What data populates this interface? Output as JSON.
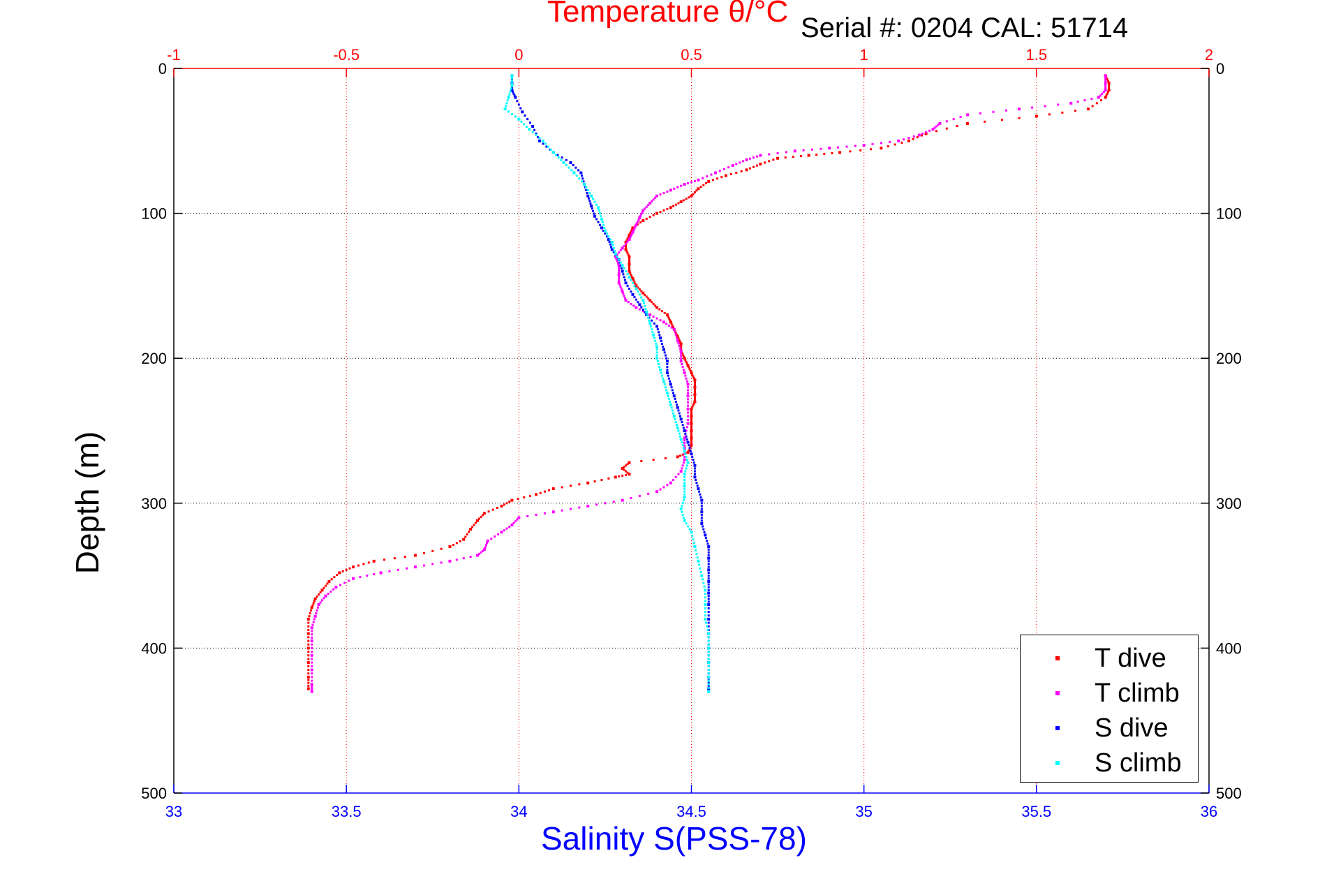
{
  "chart_data": {
    "type": "scatter",
    "title": "Temperature θ/°C",
    "subtitle": "Serial #: 0204   CAL: 51714",
    "xlabel_bottom": "Salinity S(PSS-78)",
    "xlabel_top": "Temperature θ/°C",
    "ylabel": "Depth (m)",
    "xlim_bottom": [
      33,
      36
    ],
    "xlim_top": [
      -1,
      2
    ],
    "ylim": [
      0,
      500
    ],
    "y_reversed": true,
    "grid": true,
    "legend_position": "bottom-right",
    "x_ticks_bottom": [
      "33",
      "33.5",
      "34",
      "34.5",
      "35",
      "35.5",
      "36"
    ],
    "x_ticks_top": [
      "-1",
      "-0.5",
      "0",
      "0.5",
      "1",
      "1.5",
      "2"
    ],
    "y_ticks": [
      "0",
      "100",
      "200",
      "300",
      "400",
      "500"
    ],
    "series": [
      {
        "name": "T dive",
        "axis": "top",
        "color": "#ff0000",
        "points": [
          [
            1.7,
            5
          ],
          [
            1.71,
            10
          ],
          [
            1.71,
            15
          ],
          [
            1.7,
            20
          ],
          [
            1.65,
            28
          ],
          [
            1.5,
            33
          ],
          [
            1.3,
            38
          ],
          [
            1.18,
            45
          ],
          [
            1.13,
            50
          ],
          [
            1.05,
            55
          ],
          [
            0.93,
            58
          ],
          [
            0.84,
            60
          ],
          [
            0.75,
            62
          ],
          [
            0.7,
            66
          ],
          [
            0.66,
            70
          ],
          [
            0.6,
            74
          ],
          [
            0.55,
            78
          ],
          [
            0.52,
            83
          ],
          [
            0.5,
            88
          ],
          [
            0.47,
            92
          ],
          [
            0.44,
            96
          ],
          [
            0.4,
            100
          ],
          [
            0.36,
            105
          ],
          [
            0.33,
            110
          ],
          [
            0.32,
            115
          ],
          [
            0.31,
            120
          ],
          [
            0.31,
            125
          ],
          [
            0.32,
            130
          ],
          [
            0.32,
            135
          ],
          [
            0.32,
            140
          ],
          [
            0.33,
            145
          ],
          [
            0.34,
            150
          ],
          [
            0.36,
            155
          ],
          [
            0.38,
            160
          ],
          [
            0.4,
            165
          ],
          [
            0.43,
            170
          ],
          [
            0.44,
            175
          ],
          [
            0.45,
            180
          ],
          [
            0.46,
            185
          ],
          [
            0.47,
            190
          ],
          [
            0.47,
            195
          ],
          [
            0.48,
            200
          ],
          [
            0.49,
            205
          ],
          [
            0.5,
            210
          ],
          [
            0.51,
            215
          ],
          [
            0.51,
            220
          ],
          [
            0.51,
            225
          ],
          [
            0.51,
            230
          ],
          [
            0.5,
            235
          ],
          [
            0.5,
            240
          ],
          [
            0.5,
            245
          ],
          [
            0.5,
            250
          ],
          [
            0.5,
            255
          ],
          [
            0.5,
            260
          ],
          [
            0.49,
            265
          ],
          [
            0.46,
            268
          ],
          [
            0.32,
            272
          ],
          [
            0.3,
            276
          ],
          [
            0.32,
            280
          ],
          [
            0.28,
            282
          ],
          [
            0.2,
            286
          ],
          [
            0.1,
            290
          ],
          [
            0.05,
            294
          ],
          [
            -0.02,
            298
          ],
          [
            -0.05,
            302
          ],
          [
            -0.1,
            307
          ],
          [
            -0.12,
            312
          ],
          [
            -0.14,
            318
          ],
          [
            -0.16,
            325
          ],
          [
            -0.2,
            330
          ],
          [
            -0.3,
            336
          ],
          [
            -0.42,
            340
          ],
          [
            -0.48,
            344
          ],
          [
            -0.52,
            348
          ],
          [
            -0.55,
            354
          ],
          [
            -0.57,
            360
          ],
          [
            -0.59,
            366
          ],
          [
            -0.6,
            372
          ],
          [
            -0.61,
            380
          ],
          [
            -0.61,
            390
          ],
          [
            -0.61,
            400
          ],
          [
            -0.61,
            410
          ],
          [
            -0.61,
            420
          ],
          [
            -0.61,
            428
          ]
        ]
      },
      {
        "name": "T climb",
        "axis": "top",
        "color": "#ff00ff",
        "points": [
          [
            1.7,
            5
          ],
          [
            1.7,
            10
          ],
          [
            1.7,
            15
          ],
          [
            1.68,
            20
          ],
          [
            1.6,
            24
          ],
          [
            1.45,
            28
          ],
          [
            1.3,
            32
          ],
          [
            1.22,
            38
          ],
          [
            1.2,
            42
          ],
          [
            1.16,
            46
          ],
          [
            1.1,
            50
          ],
          [
            1.0,
            53
          ],
          [
            0.9,
            55
          ],
          [
            0.8,
            57
          ],
          [
            0.7,
            60
          ],
          [
            0.66,
            63
          ],
          [
            0.62,
            67
          ],
          [
            0.57,
            72
          ],
          [
            0.52,
            77
          ],
          [
            0.48,
            80
          ],
          [
            0.44,
            84
          ],
          [
            0.4,
            88
          ],
          [
            0.38,
            93
          ],
          [
            0.36,
            98
          ],
          [
            0.35,
            103
          ],
          [
            0.34,
            108
          ],
          [
            0.33,
            113
          ],
          [
            0.32,
            118
          ],
          [
            0.3,
            124
          ],
          [
            0.28,
            130
          ],
          [
            0.29,
            136
          ],
          [
            0.29,
            142
          ],
          [
            0.29,
            148
          ],
          [
            0.3,
            154
          ],
          [
            0.31,
            160
          ],
          [
            0.34,
            165
          ],
          [
            0.38,
            170
          ],
          [
            0.42,
            175
          ],
          [
            0.45,
            180
          ],
          [
            0.46,
            188
          ],
          [
            0.47,
            195
          ],
          [
            0.47,
            202
          ],
          [
            0.48,
            210
          ],
          [
            0.49,
            218
          ],
          [
            0.49,
            226
          ],
          [
            0.49,
            235
          ],
          [
            0.49,
            245
          ],
          [
            0.48,
            255
          ],
          [
            0.48,
            262
          ],
          [
            0.48,
            270
          ],
          [
            0.47,
            278
          ],
          [
            0.44,
            286
          ],
          [
            0.4,
            292
          ],
          [
            0.3,
            298
          ],
          [
            0.2,
            302
          ],
          [
            0.1,
            306
          ],
          [
            0.0,
            310
          ],
          [
            -0.02,
            315
          ],
          [
            -0.05,
            320
          ],
          [
            -0.09,
            326
          ],
          [
            -0.1,
            332
          ],
          [
            -0.12,
            336
          ],
          [
            -0.2,
            340
          ],
          [
            -0.3,
            344
          ],
          [
            -0.4,
            348
          ],
          [
            -0.48,
            352
          ],
          [
            -0.53,
            358
          ],
          [
            -0.56,
            364
          ],
          [
            -0.58,
            370
          ],
          [
            -0.59,
            378
          ],
          [
            -0.6,
            386
          ],
          [
            -0.6,
            395
          ],
          [
            -0.6,
            405
          ],
          [
            -0.6,
            415
          ],
          [
            -0.6,
            425
          ],
          [
            -0.6,
            430
          ]
        ]
      },
      {
        "name": "S dive",
        "axis": "bottom",
        "color": "#0000ff",
        "points": [
          [
            33.98,
            5
          ],
          [
            33.98,
            10
          ],
          [
            33.98,
            15
          ],
          [
            33.99,
            20
          ],
          [
            34.01,
            30
          ],
          [
            34.04,
            40
          ],
          [
            34.06,
            50
          ],
          [
            34.1,
            58
          ],
          [
            34.15,
            65
          ],
          [
            34.18,
            72
          ],
          [
            34.19,
            80
          ],
          [
            34.2,
            88
          ],
          [
            34.21,
            95
          ],
          [
            34.22,
            102
          ],
          [
            34.24,
            110
          ],
          [
            34.26,
            118
          ],
          [
            34.27,
            125
          ],
          [
            34.29,
            132
          ],
          [
            34.3,
            140
          ],
          [
            34.31,
            148
          ],
          [
            34.33,
            156
          ],
          [
            34.35,
            163
          ],
          [
            34.37,
            170
          ],
          [
            34.4,
            178
          ],
          [
            34.41,
            186
          ],
          [
            34.42,
            194
          ],
          [
            34.43,
            202
          ],
          [
            34.43,
            210
          ],
          [
            34.44,
            218
          ],
          [
            34.45,
            226
          ],
          [
            34.46,
            234
          ],
          [
            34.47,
            242
          ],
          [
            34.48,
            250
          ],
          [
            34.49,
            258
          ],
          [
            34.5,
            266
          ],
          [
            34.51,
            274
          ],
          [
            34.51,
            282
          ],
          [
            34.52,
            290
          ],
          [
            34.53,
            298
          ],
          [
            34.53,
            306
          ],
          [
            34.53,
            314
          ],
          [
            34.54,
            322
          ],
          [
            34.55,
            330
          ],
          [
            34.55,
            338
          ],
          [
            34.55,
            346
          ],
          [
            34.55,
            354
          ],
          [
            34.55,
            362
          ],
          [
            34.55,
            370
          ],
          [
            34.55,
            380
          ],
          [
            34.55,
            390
          ],
          [
            34.55,
            400
          ],
          [
            34.55,
            410
          ],
          [
            34.55,
            420
          ],
          [
            34.55,
            428
          ]
        ]
      },
      {
        "name": "S climb",
        "axis": "bottom",
        "color": "#00ffff",
        "points": [
          [
            33.98,
            5
          ],
          [
            33.98,
            12
          ],
          [
            33.97,
            20
          ],
          [
            33.96,
            28
          ],
          [
            34.0,
            35
          ],
          [
            34.03,
            42
          ],
          [
            34.07,
            50
          ],
          [
            34.1,
            58
          ],
          [
            34.13,
            65
          ],
          [
            34.16,
            72
          ],
          [
            34.19,
            80
          ],
          [
            34.21,
            88
          ],
          [
            34.23,
            96
          ],
          [
            34.24,
            104
          ],
          [
            34.25,
            112
          ],
          [
            34.27,
            120
          ],
          [
            34.28,
            128
          ],
          [
            34.3,
            136
          ],
          [
            34.32,
            144
          ],
          [
            34.34,
            152
          ],
          [
            34.36,
            160
          ],
          [
            34.37,
            168
          ],
          [
            34.38,
            176
          ],
          [
            34.39,
            184
          ],
          [
            34.4,
            192
          ],
          [
            34.4,
            200
          ],
          [
            34.41,
            208
          ],
          [
            34.42,
            216
          ],
          [
            34.43,
            224
          ],
          [
            34.44,
            232
          ],
          [
            34.45,
            240
          ],
          [
            34.46,
            248
          ],
          [
            34.47,
            256
          ],
          [
            34.48,
            264
          ],
          [
            34.49,
            272
          ],
          [
            34.48,
            280
          ],
          [
            34.48,
            288
          ],
          [
            34.48,
            296
          ],
          [
            34.47,
            304
          ],
          [
            34.48,
            312
          ],
          [
            34.5,
            320
          ],
          [
            34.51,
            330
          ],
          [
            34.52,
            340
          ],
          [
            34.53,
            350
          ],
          [
            34.54,
            360
          ],
          [
            34.54,
            370
          ],
          [
            34.54,
            380
          ],
          [
            34.55,
            390
          ],
          [
            34.55,
            400
          ],
          [
            34.55,
            410
          ],
          [
            34.55,
            420
          ],
          [
            34.55,
            430
          ]
        ]
      }
    ]
  },
  "legend": {
    "items": [
      {
        "label": "T dive",
        "color": "#ff0000"
      },
      {
        "label": "T climb",
        "color": "#ff00ff"
      },
      {
        "label": "S dive",
        "color": "#0000ff"
      },
      {
        "label": "S climb",
        "color": "#00ffff"
      }
    ]
  },
  "colors": {
    "top_axis": "#ff0000",
    "bottom_axis": "#0000ff",
    "left_axis": "#000000",
    "grid_vertical": "#ff0000",
    "grid_horizontal": "#000000"
  }
}
